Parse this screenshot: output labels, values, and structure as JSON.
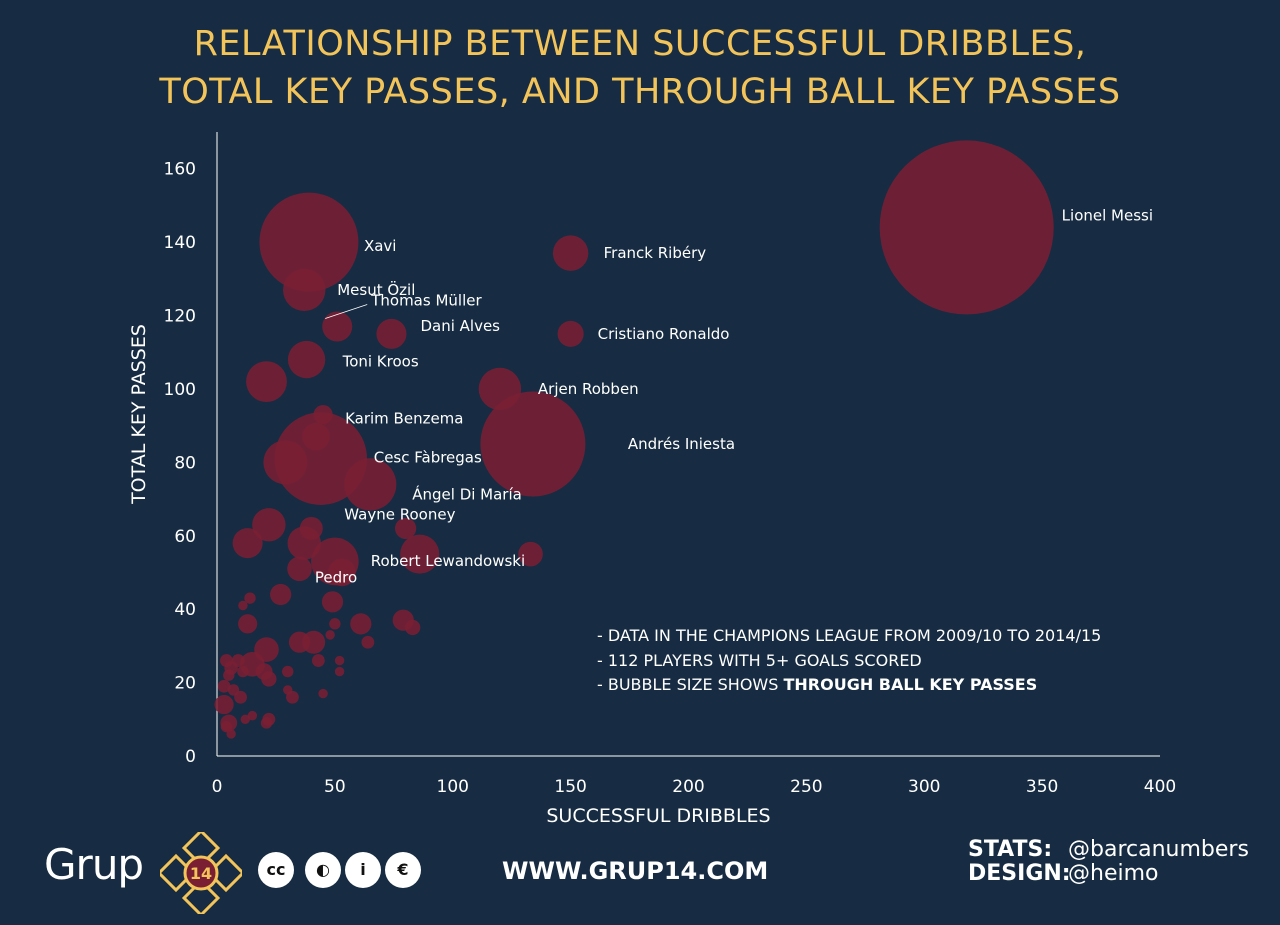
{
  "title": {
    "line1": "RELATIONSHIP BETWEEN SUCCESSFUL DRIBBLES,",
    "line2": "TOTAL KEY PASSES,  AND THROUGH BALL KEY PASSES"
  },
  "notes": {
    "line1": "- DATA IN THE CHAMPIONS LEAGUE FROM 2009/10 TO 2014/15",
    "line2": "- 112 PLAYERS WITH 5+ GOALS SCORED",
    "line3_prefix": "- BUBBLE SIZE SHOWS ",
    "line3_bold": "THROUGH BALL KEY PASSES"
  },
  "footer": {
    "brand": "Grup",
    "badge_number": "14",
    "license_icons": [
      "cc-icon",
      "by-icon",
      "attribution-icon",
      "nc-icon"
    ],
    "license_glyphs": [
      "cc",
      "◐",
      "i",
      "€"
    ],
    "website": "WWW.GRUP14.COM",
    "stats_label": "STATS:",
    "stats_value": "@barcanumbers",
    "design_label": "DESIGN:",
    "design_value": "@heimo"
  },
  "colors": {
    "background": "#172c42",
    "title": "#f2c45a",
    "bubble": "#7a1f33",
    "axis": "#ffffff"
  },
  "chart_data": {
    "type": "scatter",
    "xlabel": "SUCCESSFUL DRIBBLES",
    "ylabel": "TOTAL KEY PASSES",
    "xlim": [
      0,
      400
    ],
    "ylim": [
      0,
      170
    ],
    "xticks": [
      0,
      50,
      100,
      150,
      200,
      250,
      300,
      350,
      400
    ],
    "yticks": [
      0,
      20,
      40,
      60,
      80,
      100,
      120,
      140,
      160
    ],
    "size_metric": "THROUGH BALL KEY PASSES",
    "labeled_points": [
      {
        "name": "Lionel Messi",
        "x": 318,
        "y": 144,
        "size": 49
      },
      {
        "name": "Xavi",
        "x": 39,
        "y": 140,
        "size": 15
      },
      {
        "name": "Franck Ribéry",
        "x": 150,
        "y": 137,
        "size": 1.5
      },
      {
        "name": "Mesut Özil",
        "x": 37,
        "y": 127,
        "size": 2.3
      },
      {
        "name": "Thomas Müller",
        "x": 51,
        "y": 117,
        "size": 1
      },
      {
        "name": "Dani Alves",
        "x": 74,
        "y": 115,
        "size": 1
      },
      {
        "name": "Cristiano Ronaldo",
        "x": 150,
        "y": 115,
        "size": 0.7
      },
      {
        "name": "Toni Kroos",
        "x": 38,
        "y": 108,
        "size": 1.7
      },
      {
        "name": "Arjen Robben",
        "x": 120,
        "y": 100,
        "size": 2.3
      },
      {
        "name": "Karim Benzema",
        "x": 45,
        "y": 93,
        "size": 0.3
      },
      {
        "name": "Andrés Iniesta",
        "x": 134,
        "y": 85,
        "size": 17
      },
      {
        "name": "Cesc Fàbregas",
        "x": 44,
        "y": 81,
        "size": 13
      },
      {
        "name": "Ángel Di María",
        "x": 65,
        "y": 74,
        "size": 3.7
      },
      {
        "name": "Wayne Rooney",
        "x": 40,
        "y": 62,
        "size": 0.5
      },
      {
        "name": "Robert Lewandowski",
        "x": 86,
        "y": 55,
        "size": 1.9
      },
      {
        "name": "Pedro",
        "x": 50,
        "y": 53,
        "size": 3
      }
    ],
    "other_points": [
      {
        "x": 21,
        "y": 102,
        "size": 2.1
      },
      {
        "x": 29,
        "y": 80,
        "size": 2.5
      },
      {
        "x": 42,
        "y": 87,
        "size": 0.8
      },
      {
        "x": 22,
        "y": 63,
        "size": 1.3
      },
      {
        "x": 13,
        "y": 58,
        "size": 1
      },
      {
        "x": 37,
        "y": 58,
        "size": 1.3
      },
      {
        "x": 80,
        "y": 62,
        "size": 0.4
      },
      {
        "x": 133,
        "y": 55,
        "size": 0.6
      },
      {
        "x": 35,
        "y": 51,
        "size": 0.6
      },
      {
        "x": 53,
        "y": 50,
        "size": 0.8
      },
      {
        "x": 27,
        "y": 44,
        "size": 0.4
      },
      {
        "x": 14,
        "y": 43,
        "size": 0.05
      },
      {
        "x": 11,
        "y": 41,
        "size": 0.02
      },
      {
        "x": 49,
        "y": 42,
        "size": 0.4
      },
      {
        "x": 13,
        "y": 36,
        "size": 0.3
      },
      {
        "x": 61,
        "y": 36,
        "size": 0.4
      },
      {
        "x": 79,
        "y": 37,
        "size": 0.4
      },
      {
        "x": 83,
        "y": 35,
        "size": 0.15
      },
      {
        "x": 50,
        "y": 36,
        "size": 0.05
      },
      {
        "x": 64,
        "y": 31,
        "size": 0.08
      },
      {
        "x": 41,
        "y": 31,
        "size": 0.5
      },
      {
        "x": 35,
        "y": 31,
        "size": 0.4
      },
      {
        "x": 48,
        "y": 33,
        "size": 0.02
      },
      {
        "x": 21,
        "y": 29,
        "size": 0.6
      },
      {
        "x": 43,
        "y": 26,
        "size": 0.08
      },
      {
        "x": 52,
        "y": 26,
        "size": 0.02
      },
      {
        "x": 15,
        "y": 25,
        "size": 0.6
      },
      {
        "x": 4,
        "y": 26,
        "size": 0.08
      },
      {
        "x": 9,
        "y": 26,
        "size": 0.08
      },
      {
        "x": 6,
        "y": 24,
        "size": 0.1
      },
      {
        "x": 11,
        "y": 23,
        "size": 0.05
      },
      {
        "x": 20,
        "y": 23,
        "size": 0.2
      },
      {
        "x": 30,
        "y": 23,
        "size": 0.05
      },
      {
        "x": 52,
        "y": 23,
        "size": 0.02
      },
      {
        "x": 22,
        "y": 21,
        "size": 0.15
      },
      {
        "x": 5,
        "y": 22,
        "size": 0.05
      },
      {
        "x": 3,
        "y": 19,
        "size": 0.08
      },
      {
        "x": 7,
        "y": 18,
        "size": 0.05
      },
      {
        "x": 30,
        "y": 18,
        "size": 0.02
      },
      {
        "x": 45,
        "y": 17,
        "size": 0.02
      },
      {
        "x": 32,
        "y": 16,
        "size": 0.08
      },
      {
        "x": 10,
        "y": 16,
        "size": 0.08
      },
      {
        "x": 3,
        "y": 14,
        "size": 0.3
      },
      {
        "x": 15,
        "y": 11,
        "size": 0.02
      },
      {
        "x": 12,
        "y": 10,
        "size": 0.02
      },
      {
        "x": 22,
        "y": 10,
        "size": 0.08
      },
      {
        "x": 5,
        "y": 9,
        "size": 0.2
      },
      {
        "x": 21,
        "y": 9,
        "size": 0.05
      },
      {
        "x": 4,
        "y": 8,
        "size": 0.05
      },
      {
        "x": 6,
        "y": 6,
        "size": 0.02
      }
    ]
  }
}
